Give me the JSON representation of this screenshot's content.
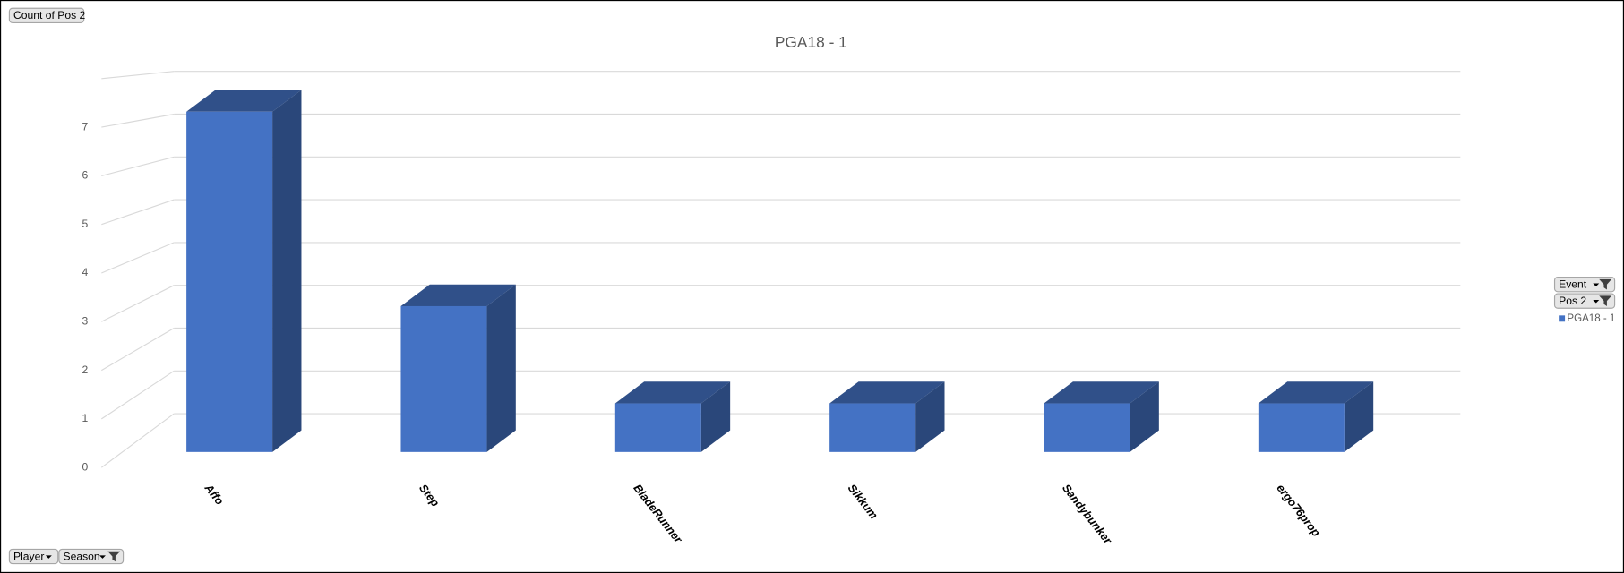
{
  "chart_data": {
    "type": "bar3d",
    "title": "PGA18 - 1",
    "categories": [
      "Affo",
      "Step",
      "BladeRunner",
      "Sikkum",
      "Sandybunker",
      "ergo76prop"
    ],
    "series": [
      {
        "name": "PGA18 - 1",
        "color": "#4472c4",
        "values": [
          7,
          3,
          1,
          1,
          1,
          1
        ]
      }
    ],
    "ylim": [
      0,
      8
    ],
    "yticks": [
      0,
      1,
      2,
      3,
      4,
      5,
      6,
      7
    ],
    "grid": true,
    "legend": "right"
  },
  "filter_buttons": {
    "value_field": "Count of Pos 2",
    "report_filters": [
      "Event",
      "Pos 2"
    ],
    "axis_fields": [
      "Player",
      "Season"
    ]
  }
}
